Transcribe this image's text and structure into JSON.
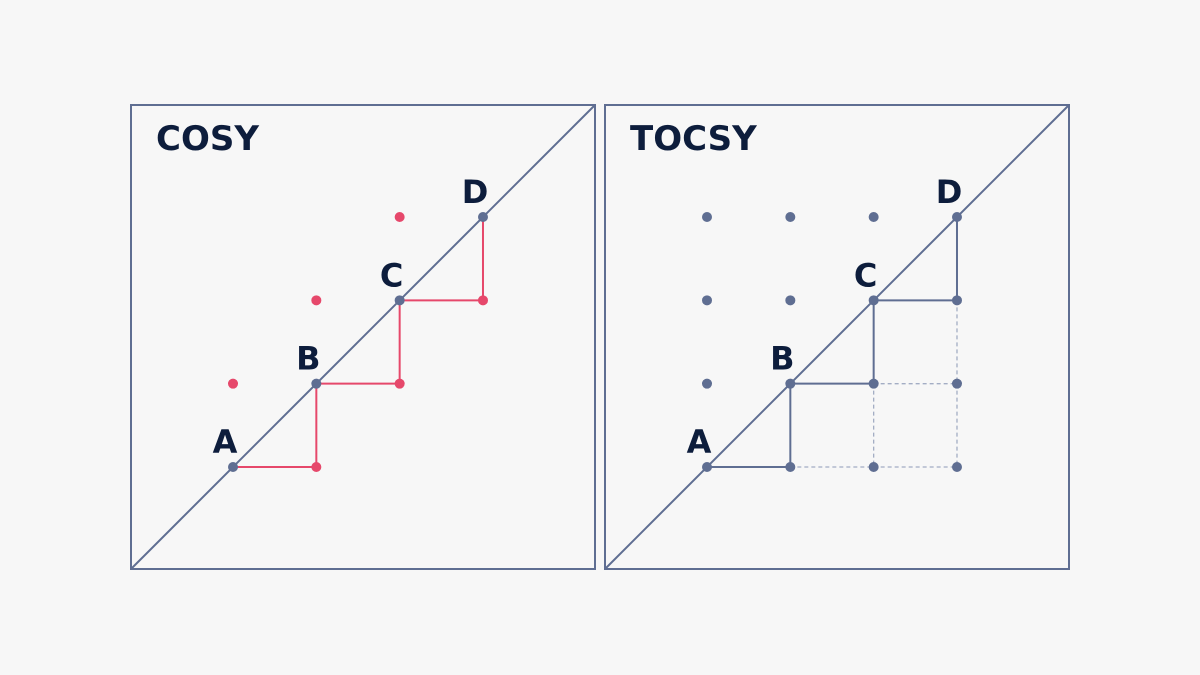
{
  "colors": {
    "frame": "#5f6e92",
    "text": "#0d1d3c",
    "cosy_peak": "#e6486b",
    "tocsy_peak": "#5f6e92",
    "dashed": "#a3adc4",
    "background": "#f7f7f7"
  },
  "spins": [
    "A",
    "B",
    "C",
    "D"
  ],
  "panels": [
    {
      "id": "cosy",
      "title": "COSY",
      "cross_peak_color_key": "cosy_peak",
      "cross_peaks": [
        [
          "A",
          "B"
        ],
        [
          "B",
          "C"
        ],
        [
          "C",
          "D"
        ]
      ],
      "solid_paths": [
        [
          "A",
          "B"
        ],
        [
          "B",
          "C"
        ],
        [
          "C",
          "D"
        ]
      ],
      "dashed_paths": []
    },
    {
      "id": "tocsy",
      "title": "TOCSY",
      "cross_peak_color_key": "tocsy_peak",
      "cross_peaks": [
        [
          "A",
          "B"
        ],
        [
          "A",
          "C"
        ],
        [
          "A",
          "D"
        ],
        [
          "B",
          "C"
        ],
        [
          "B",
          "D"
        ],
        [
          "C",
          "D"
        ]
      ],
      "solid_paths": [
        [
          "A",
          "B"
        ],
        [
          "B",
          "C"
        ],
        [
          "C",
          "D"
        ]
      ],
      "dashed_paths": [
        [
          "A",
          "C"
        ],
        [
          "A",
          "D"
        ],
        [
          "B",
          "D"
        ]
      ]
    }
  ]
}
